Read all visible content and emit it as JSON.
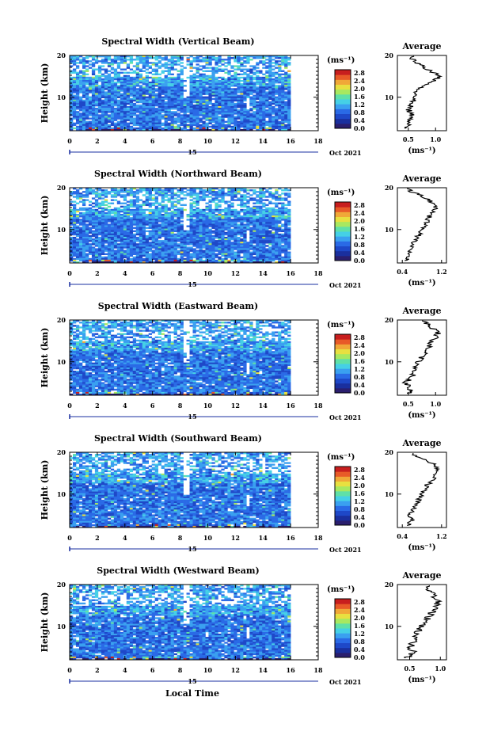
{
  "chart_data": [
    {
      "type": "heatmap",
      "title": "Spectral Width (Vertical Beam)",
      "ylabel": "Height (km)",
      "y_ticks": [
        "20",
        "10"
      ],
      "x_ticks": [
        "0",
        "2",
        "4",
        "6",
        "8",
        "10",
        "12",
        "14",
        "16",
        "18"
      ],
      "day_label": "15",
      "month_label": "Oct 2021",
      "xlim": [
        0,
        18
      ],
      "ylim": [
        2,
        20
      ],
      "colorbar": {
        "unit": "(ms⁻¹)",
        "ticks": [
          "2.8",
          "2.4",
          "2.0",
          "1.6",
          "1.2",
          "0.8",
          "0.4",
          "0.0"
        ],
        "range": [
          0,
          2.8
        ]
      },
      "average": {
        "title": "Average",
        "x_ticks": [
          "0.5",
          "1.0"
        ],
        "xlim": [
          0.3,
          1.2
        ],
        "xlabel": "(ms⁻¹)",
        "y_ticks": [
          "20",
          "10"
        ],
        "heights": [
          2.5,
          3,
          4,
          5,
          6,
          7,
          8,
          9,
          10,
          11,
          12,
          13,
          14,
          15,
          16,
          17,
          18,
          19,
          20
        ],
        "values": [
          0.45,
          0.5,
          0.5,
          0.55,
          0.55,
          0.5,
          0.55,
          0.6,
          0.6,
          0.6,
          0.7,
          0.85,
          1.0,
          1.05,
          0.95,
          0.8,
          0.7,
          0.6,
          0.55
        ]
      }
    },
    {
      "type": "heatmap",
      "title": "Spectral Width (Northward Beam)",
      "ylabel": "Height (km)",
      "y_ticks": [
        "20",
        "10"
      ],
      "x_ticks": [
        "0",
        "2",
        "4",
        "6",
        "8",
        "10",
        "12",
        "14",
        "16",
        "18"
      ],
      "day_label": "15",
      "month_label": "Oct 2021",
      "xlim": [
        0,
        18
      ],
      "ylim": [
        2,
        20
      ],
      "colorbar": {
        "unit": "(ms⁻¹)",
        "ticks": [
          "2.8",
          "2.4",
          "2.0",
          "1.6",
          "1.2",
          "0.8",
          "0.4",
          "0.0"
        ],
        "range": [
          0,
          2.8
        ]
      },
      "average": {
        "title": "Average",
        "x_ticks": [
          "0.4",
          "1.2"
        ],
        "xlim": [
          0.3,
          1.3
        ],
        "xlabel": "(ms⁻¹)",
        "y_ticks": [
          "20",
          "10"
        ],
        "heights": [
          2.5,
          3,
          4,
          5,
          6,
          7,
          8,
          9,
          10,
          11,
          12,
          13,
          14,
          15,
          16,
          17,
          18,
          19,
          20
        ],
        "values": [
          0.45,
          0.5,
          0.55,
          0.5,
          0.6,
          0.65,
          0.7,
          0.75,
          0.8,
          0.85,
          0.9,
          0.95,
          1.0,
          1.1,
          1.05,
          0.95,
          0.8,
          0.6,
          0.5
        ]
      }
    },
    {
      "type": "heatmap",
      "title": "Spectral Width (Eastward Beam)",
      "ylabel": "Height (km)",
      "y_ticks": [
        "20",
        "10"
      ],
      "x_ticks": [
        "0",
        "2",
        "4",
        "6",
        "8",
        "10",
        "12",
        "14",
        "16",
        "18"
      ],
      "day_label": "15",
      "month_label": "Oct 2021",
      "xlim": [
        0,
        18
      ],
      "ylim": [
        2,
        20
      ],
      "colorbar": {
        "unit": "(ms⁻¹)",
        "ticks": [
          "2.8",
          "2.4",
          "2.0",
          "1.6",
          "1.2",
          "0.8",
          "0.4",
          "0.0"
        ],
        "range": [
          0,
          2.8
        ]
      },
      "average": {
        "title": "Average",
        "x_ticks": [
          "0.5",
          "1.0"
        ],
        "xlim": [
          0.3,
          1.2
        ],
        "xlabel": "(ms⁻¹)",
        "y_ticks": [
          "20",
          "10"
        ],
        "heights": [
          2.5,
          3,
          4,
          5,
          6,
          7,
          8,
          9,
          10,
          11,
          12,
          13,
          14,
          15,
          16,
          17,
          18,
          19,
          20
        ],
        "values": [
          0.5,
          0.55,
          0.5,
          0.45,
          0.55,
          0.6,
          0.6,
          0.65,
          0.7,
          0.75,
          0.8,
          0.85,
          0.9,
          0.95,
          1.0,
          1.05,
          0.95,
          0.85,
          0.8
        ]
      }
    },
    {
      "type": "heatmap",
      "title": "Spectral Width (Southward Beam)",
      "ylabel": "Height (km)",
      "y_ticks": [
        "20",
        "10"
      ],
      "x_ticks": [
        "0",
        "2",
        "4",
        "6",
        "8",
        "10",
        "12",
        "14",
        "16",
        "18"
      ],
      "day_label": "15",
      "month_label": "Oct 2021",
      "xlim": [
        0,
        18
      ],
      "ylim": [
        2,
        20
      ],
      "colorbar": {
        "unit": "(ms⁻¹)",
        "ticks": [
          "2.8",
          "2.4",
          "2.0",
          "1.6",
          "1.2",
          "0.8",
          "0.4",
          "0.0"
        ],
        "range": [
          0,
          2.8
        ]
      },
      "average": {
        "title": "Average",
        "x_ticks": [
          "0.4",
          "1.2"
        ],
        "xlim": [
          0.3,
          1.3
        ],
        "xlabel": "(ms⁻¹)",
        "y_ticks": [
          "20",
          "10"
        ],
        "heights": [
          2.5,
          3,
          4,
          5,
          6,
          7,
          8,
          9,
          10,
          11,
          12,
          13,
          14,
          15,
          16,
          17,
          18,
          19,
          20
        ],
        "values": [
          0.5,
          0.55,
          0.6,
          0.55,
          0.6,
          0.65,
          0.7,
          0.75,
          0.8,
          0.85,
          0.9,
          1.0,
          1.05,
          1.1,
          1.15,
          1.05,
          0.9,
          0.7,
          0.55
        ]
      }
    },
    {
      "type": "heatmap",
      "title": "Spectral Width (Westward Beam)",
      "ylabel": "Height (km)",
      "y_ticks": [
        "20",
        "10"
      ],
      "x_ticks": [
        "0",
        "2",
        "4",
        "6",
        "8",
        "10",
        "12",
        "14",
        "16",
        "18"
      ],
      "day_label": "15",
      "month_label": "Oct 2021",
      "xlim": [
        0,
        18
      ],
      "ylim": [
        2,
        20
      ],
      "colorbar": {
        "unit": "(ms⁻¹)",
        "ticks": [
          "2.8",
          "2.4",
          "2.0",
          "1.6",
          "1.2",
          "0.8",
          "0.4",
          "0.0"
        ],
        "range": [
          0,
          2.8
        ]
      },
      "average": {
        "title": "Average",
        "x_ticks": [
          "0.5",
          "1.0"
        ],
        "xlim": [
          0.3,
          1.1
        ],
        "xlabel": "(ms⁻¹)",
        "y_ticks": [
          "20",
          "10"
        ],
        "heights": [
          2.5,
          3,
          4,
          5,
          6,
          7,
          8,
          9,
          10,
          11,
          12,
          13,
          14,
          15,
          16,
          17,
          18,
          19,
          20
        ],
        "values": [
          0.45,
          0.5,
          0.55,
          0.5,
          0.55,
          0.6,
          0.6,
          0.65,
          0.7,
          0.75,
          0.8,
          0.85,
          0.9,
          0.95,
          0.95,
          0.9,
          0.85,
          0.8,
          0.75
        ]
      }
    }
  ],
  "footer": {
    "xlabel": "Local Time"
  },
  "colors": {
    "colormap": [
      "#2a1e6e",
      "#1a2f9e",
      "#1e48c8",
      "#2a6ae6",
      "#3aa0f0",
      "#45d0e6",
      "#5fe0a8",
      "#a8e860",
      "#e8e040",
      "#f0a838",
      "#e85a28",
      "#c81e1e"
    ],
    "missing": "#ffffff"
  }
}
